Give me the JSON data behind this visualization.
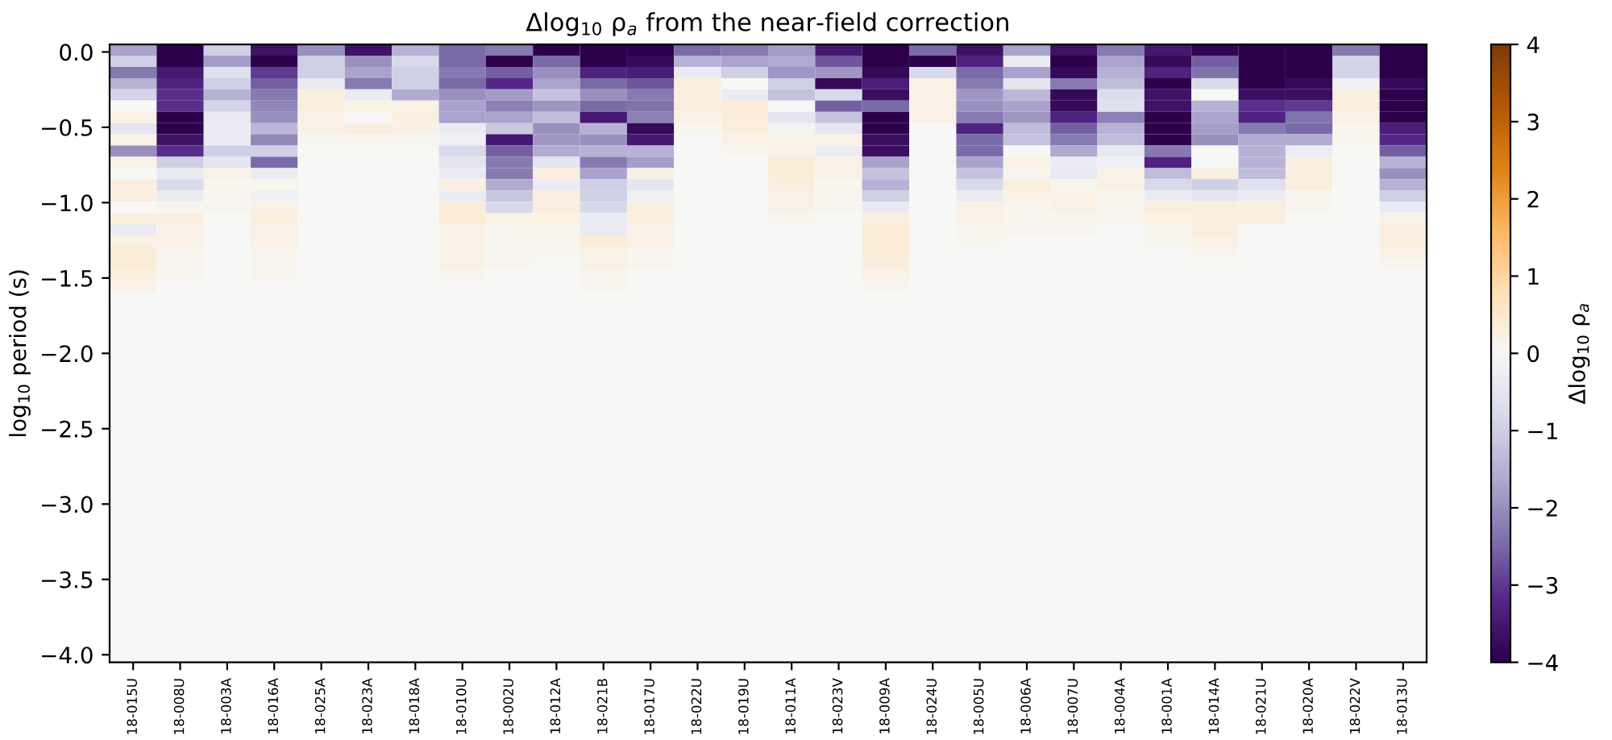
{
  "chart_data": {
    "type": "heatmap",
    "title": "Δlog$_{10}$ ρ$_{a}$ from the near-field correction",
    "ylabel": "log$_{10}$ period (s)",
    "clabel": "Δlog$_{10}$ ρ$_{a}$",
    "categories": [
      "18-015U",
      "18-008U",
      "18-003A",
      "18-016A",
      "18-025A",
      "18-023A",
      "18-018A",
      "18-010U",
      "18-002U",
      "18-012A",
      "18-021B",
      "18-017U",
      "18-022U",
      "18-019U",
      "18-011A",
      "18-023V",
      "18-009A",
      "18-024U",
      "18-005U",
      "18-006A",
      "18-007U",
      "18-004A",
      "18-001A",
      "18-014A",
      "18-021U",
      "18-020A",
      "18-022V",
      "18-013U"
    ],
    "ylim": [
      -4.05,
      0.05
    ],
    "yticks": [
      {
        "value": 0.0,
        "label": "0.0"
      },
      {
        "value": -0.5,
        "label": "−0.5"
      },
      {
        "value": -1.0,
        "label": "−1.0"
      },
      {
        "value": -1.5,
        "label": "−1.5"
      },
      {
        "value": -2.0,
        "label": "−2.0"
      },
      {
        "value": -2.5,
        "label": "−2.5"
      },
      {
        "value": -3.0,
        "label": "−3.0"
      },
      {
        "value": -3.5,
        "label": "−3.5"
      },
      {
        "value": -4.0,
        "label": "−4.0"
      }
    ],
    "clim": [
      -4,
      4
    ],
    "cticks": [
      {
        "value": -4,
        "label": "−4"
      },
      {
        "value": -3,
        "label": "−3"
      },
      {
        "value": -2,
        "label": "−2"
      },
      {
        "value": -1,
        "label": "−1"
      },
      0,
      1,
      2,
      3,
      4
    ],
    "cells": [
      [
        -1.7,
        -4,
        -1,
        -3.6,
        -2,
        -3.6,
        -1.5,
        -2.5,
        -2.3,
        -4,
        -4,
        -4,
        -2.5,
        -2.3,
        -1.8,
        -3.5,
        -4,
        -2.5,
        -3.6,
        -1.7,
        -3.6,
        -2.3,
        -3.5,
        -3.9,
        -4,
        -4,
        -2.3,
        -4
      ],
      [
        -1,
        -4,
        -1.8,
        -4,
        -1,
        -2,
        -0.8,
        -2.5,
        -4,
        -2.5,
        -4,
        -3.8,
        -1.5,
        -1.7,
        -1.6,
        -2.7,
        -4,
        -4,
        -3.3,
        -0.3,
        -4,
        -1.7,
        -3.8,
        -2.6,
        -4,
        -4,
        -0.9,
        -4
      ],
      [
        -2.3,
        -3.5,
        -0.6,
        -3,
        -1,
        -1.7,
        -1,
        -2.3,
        -2.6,
        -2,
        -3.3,
        -3.4,
        -0.3,
        -1,
        -1.9,
        -1.9,
        -3.8,
        -0.8,
        -2.5,
        -1.7,
        -3.8,
        -1.5,
        -3.3,
        -2.4,
        -4,
        -4,
        -0.9,
        -4
      ],
      [
        -1.5,
        -3.3,
        -1,
        -2.6,
        -0.4,
        -2.3,
        -1,
        -2.5,
        -3.2,
        -1.7,
        -2.5,
        -2.7,
        0.3,
        0,
        -1,
        -3.8,
        -3.4,
        0.2,
        -2.3,
        -0.5,
        -2.3,
        -1.3,
        -4,
        -0.8,
        -4,
        -3.8,
        -0.2,
        -3.8
      ],
      [
        -0.9,
        -3.1,
        -1.5,
        -2.3,
        0.3,
        -0.3,
        -1.6,
        -2,
        -1.8,
        -1.2,
        -2,
        -2.3,
        0.3,
        -0.3,
        -1.2,
        -0.8,
        -3.7,
        0.2,
        -1.9,
        -1.4,
        -3.8,
        -0.7,
        -3.6,
        0,
        -3.7,
        -3.7,
        0.3,
        -4
      ],
      [
        0,
        -3.1,
        -0.9,
        -2.1,
        0.3,
        0.2,
        0.2,
        -1.7,
        -2.2,
        -1.9,
        -2.5,
        -2.4,
        0.3,
        0.4,
        0,
        -2.6,
        -2.5,
        0.2,
        -2,
        -1.7,
        -3.8,
        -0.6,
        -3.6,
        -1.5,
        -3.1,
        -3,
        0.3,
        -4
      ],
      [
        0.2,
        -4,
        -0.4,
        -2,
        0.2,
        0,
        0.3,
        -1.7,
        -1.7,
        -1.3,
        -3.5,
        -2.2,
        0.2,
        0.4,
        -0.5,
        -1.2,
        -4,
        0.2,
        -2.3,
        -1.9,
        -3.3,
        -2.2,
        -4,
        -1.7,
        -3.3,
        -2.4,
        0.2,
        -4
      ],
      [
        -0.5,
        -4,
        -0.3,
        -1.4,
        0.2,
        0.3,
        0.2,
        -0.3,
        -1.1,
        -2,
        -1.5,
        -3.8,
        0.1,
        0.3,
        -0.1,
        -0.5,
        -4,
        0,
        -3.3,
        -1.3,
        -2.6,
        -1.5,
        -4,
        -1.8,
        -2.3,
        -2.5,
        0.1,
        -3.4
      ],
      [
        0.2,
        -3.6,
        -0.3,
        -2.1,
        0.1,
        0.1,
        0.1,
        -0.2,
        -3.5,
        -1.9,
        -2,
        -3.5,
        0,
        0.2,
        0.2,
        0.2,
        -3.7,
        0,
        -2.5,
        -1.2,
        -2.3,
        -1.3,
        -4,
        -2,
        -1.6,
        -1.6,
        0.1,
        -3.2
      ],
      [
        -2,
        -3.1,
        -1,
        -1,
        0,
        0,
        0,
        -0.8,
        -2.6,
        -1.6,
        -1.5,
        -1.5,
        0,
        0.1,
        0.2,
        -0.3,
        -3.7,
        0,
        -2.5,
        0,
        -1.6,
        -0.4,
        -2.3,
        0,
        -1.5,
        -0.3,
        0,
        -2.6
      ],
      [
        0.2,
        -1,
        -0.5,
        -2.5,
        0,
        0,
        0,
        -0.5,
        -2.3,
        -0.5,
        -2.3,
        -1.8,
        0,
        0,
        0.4,
        0.2,
        -1.7,
        0,
        -1.7,
        0.2,
        -0.3,
        -0.2,
        -3.3,
        0,
        -1.5,
        0.3,
        0,
        -1.5
      ],
      [
        0,
        -0.4,
        0.2,
        -0.3,
        0,
        0,
        0,
        -0.3,
        -2.3,
        0.3,
        -1.7,
        0.2,
        0,
        0,
        0.4,
        0.2,
        -1.2,
        0,
        -1.2,
        0.1,
        -0.4,
        0.2,
        -1.3,
        0.3,
        -1.3,
        0.3,
        0,
        -2
      ],
      [
        0.3,
        -0.8,
        0.1,
        0.1,
        0,
        0,
        0,
        0.3,
        -1.6,
        -0.3,
        -1,
        -0.5,
        0,
        0,
        0.3,
        0.1,
        -1.5,
        0,
        -0.8,
        0.3,
        0.1,
        0.2,
        -0.8,
        -1,
        -0.6,
        0.3,
        0,
        -1.5
      ],
      [
        0.3,
        -0.3,
        0.1,
        -0.2,
        0,
        0,
        0,
        -0.3,
        -1.1,
        0.3,
        -1,
        -0.2,
        0,
        0,
        0.2,
        0.1,
        -1,
        0,
        -0.3,
        0.2,
        0.2,
        0.1,
        -0.3,
        -0.5,
        -0.3,
        0.1,
        0,
        -1
      ],
      [
        0,
        0.1,
        0.1,
        0.2,
        0,
        0,
        0,
        0.4,
        -0.8,
        0.3,
        -0.8,
        0.3,
        0,
        0,
        0.2,
        0.1,
        -0.4,
        0,
        0.2,
        0.1,
        0.2,
        0.1,
        0.3,
        0.3,
        0.3,
        0.1,
        0,
        -0.4
      ],
      [
        0.3,
        0.3,
        0,
        0.3,
        0,
        0,
        0,
        0.4,
        0.2,
        0.2,
        -0.3,
        0.3,
        0,
        0,
        0.1,
        0,
        0.3,
        0,
        0.2,
        0.1,
        0.1,
        0.1,
        0.2,
        0.3,
        0.3,
        0,
        0,
        0.2
      ],
      [
        -0.3,
        0.2,
        0,
        0.2,
        0,
        0,
        0,
        0.2,
        0.1,
        0.1,
        -0.3,
        0.2,
        0,
        0,
        0,
        0,
        0.4,
        0,
        0.1,
        0.1,
        0.1,
        0,
        0.1,
        0.3,
        0,
        0,
        0,
        0.3
      ],
      [
        0.2,
        0.2,
        0,
        0.2,
        0,
        0,
        0,
        0.2,
        0.1,
        0.1,
        0.4,
        0.2,
        0,
        0,
        0,
        0,
        0.4,
        0,
        0.1,
        0,
        0,
        0,
        0.1,
        0.2,
        0,
        0,
        0,
        0.3
      ],
      [
        0.4,
        0.1,
        0,
        0.1,
        0,
        0,
        0,
        0.2,
        0.1,
        0.1,
        0.2,
        0.1,
        0,
        0,
        0,
        0,
        0.4,
        0,
        0,
        0,
        0,
        0,
        0,
        0.1,
        0,
        0,
        0,
        0.2
      ],
      [
        0.4,
        0.1,
        0,
        0.1,
        0,
        0,
        0,
        0.2,
        0.1,
        0,
        0.2,
        0.1,
        0,
        0,
        0,
        0,
        0.3,
        0,
        0,
        0,
        0,
        0,
        0,
        0,
        0,
        0,
        0,
        0.1
      ],
      [
        0.3,
        0.1,
        0,
        0.1,
        0,
        0,
        0,
        0.1,
        0,
        0,
        0.1,
        0,
        0,
        0,
        0,
        0,
        0.2,
        0,
        0,
        0,
        0,
        0,
        0,
        0,
        0,
        0,
        0,
        0
      ],
      [
        0.2,
        0,
        0,
        0,
        0,
        0,
        0,
        0,
        0,
        0,
        0.1,
        0,
        0,
        0,
        0,
        0,
        0.1,
        0,
        0,
        0,
        0,
        0,
        0,
        0,
        0,
        0,
        0,
        0
      ],
      [
        0,
        0,
        0,
        0,
        0,
        0,
        0,
        0,
        0,
        0,
        0,
        0,
        0,
        0,
        0,
        0,
        0,
        0,
        0,
        0,
        0,
        0,
        0,
        0,
        0,
        0,
        0,
        0
      ],
      [
        0,
        0,
        0,
        0,
        0,
        0,
        0,
        0,
        0,
        0,
        0,
        0,
        0,
        0,
        0,
        0,
        0,
        0,
        0,
        0,
        0,
        0,
        0,
        0,
        0,
        0,
        0,
        0
      ],
      [
        0,
        0,
        0,
        0,
        0,
        0,
        0,
        0,
        0,
        0,
        0,
        0,
        0,
        0,
        0,
        0,
        0,
        0,
        0,
        0,
        0,
        0,
        0,
        0,
        0,
        0,
        0,
        0
      ],
      [
        0,
        0,
        0,
        0,
        0,
        0,
        0,
        0,
        0,
        0,
        0,
        0,
        0,
        0,
        0,
        0,
        0,
        0,
        0,
        0,
        0,
        0,
        0,
        0,
        0,
        0,
        0,
        0
      ],
      [
        0,
        0,
        0,
        0,
        0,
        0,
        0,
        0,
        0,
        0,
        0,
        0,
        0,
        0,
        0,
        0,
        0,
        0,
        0,
        0,
        0,
        0,
        0,
        0,
        0,
        0,
        0,
        0
      ],
      [
        0,
        0,
        0,
        0,
        0,
        0,
        0,
        0,
        0,
        0,
        0,
        0,
        0,
        0,
        0,
        0,
        0,
        0,
        0,
        0,
        0,
        0,
        0,
        0,
        0,
        0,
        0,
        0
      ],
      [
        0,
        0,
        0,
        0,
        0,
        0,
        0,
        0,
        0,
        0,
        0,
        0,
        0,
        0,
        0,
        0,
        0,
        0,
        0,
        0,
        0,
        0,
        0,
        0,
        0,
        0,
        0,
        0
      ],
      [
        0,
        0,
        0,
        0,
        0,
        0,
        0,
        0,
        0,
        0,
        0,
        0,
        0,
        0,
        0,
        0,
        0,
        0,
        0,
        0,
        0,
        0,
        0,
        0,
        0,
        0,
        0,
        0
      ],
      [
        0,
        0,
        0,
        0,
        0,
        0,
        0,
        0,
        0,
        0,
        0,
        0,
        0,
        0,
        0,
        0,
        0,
        0,
        0,
        0,
        0,
        0,
        0,
        0,
        0,
        0,
        0,
        0
      ],
      [
        0,
        0,
        0,
        0,
        0,
        0,
        0,
        0,
        0,
        0,
        0,
        0,
        0,
        0,
        0,
        0,
        0,
        0,
        0,
        0,
        0,
        0,
        0,
        0,
        0,
        0,
        0,
        0
      ],
      [
        0,
        0,
        0,
        0,
        0,
        0,
        0,
        0,
        0,
        0,
        0,
        0,
        0,
        0,
        0,
        0,
        0,
        0,
        0,
        0,
        0,
        0,
        0,
        0,
        0,
        0,
        0,
        0
      ],
      [
        0,
        0,
        0,
        0,
        0,
        0,
        0,
        0,
        0,
        0,
        0,
        0,
        0,
        0,
        0,
        0,
        0,
        0,
        0,
        0,
        0,
        0,
        0,
        0,
        0,
        0,
        0,
        0
      ],
      [
        0,
        0,
        0,
        0,
        0,
        0,
        0,
        0,
        0,
        0,
        0,
        0,
        0,
        0,
        0,
        0,
        0,
        0,
        0,
        0,
        0,
        0,
        0,
        0,
        0,
        0,
        0,
        0
      ],
      [
        0,
        0,
        0,
        0,
        0,
        0,
        0,
        0,
        0,
        0,
        0,
        0,
        0,
        0,
        0,
        0,
        0,
        0,
        0,
        0,
        0,
        0,
        0,
        0,
        0,
        0,
        0,
        0
      ],
      [
        0,
        0,
        0,
        0,
        0,
        0,
        0,
        0,
        0,
        0,
        0,
        0,
        0,
        0,
        0,
        0,
        0,
        0,
        0,
        0,
        0,
        0,
        0,
        0,
        0,
        0,
        0,
        0
      ],
      [
        0,
        0,
        0,
        0,
        0,
        0,
        0,
        0,
        0,
        0,
        0,
        0,
        0,
        0,
        0,
        0,
        0,
        0,
        0,
        0,
        0,
        0,
        0,
        0,
        0,
        0,
        0,
        0
      ],
      [
        0,
        0,
        0,
        0,
        0,
        0,
        0,
        0,
        0,
        0,
        0,
        0,
        0,
        0,
        0,
        0,
        0,
        0,
        0,
        0,
        0,
        0,
        0,
        0,
        0,
        0,
        0,
        0
      ],
      [
        0,
        0,
        0,
        0,
        0,
        0,
        0,
        0,
        0,
        0,
        0,
        0,
        0,
        0,
        0,
        0,
        0,
        0,
        0,
        0,
        0,
        0,
        0,
        0,
        0,
        0,
        0,
        0
      ],
      [
        0,
        0,
        0,
        0,
        0,
        0,
        0,
        0,
        0,
        0,
        0,
        0,
        0,
        0,
        0,
        0,
        0,
        0,
        0,
        0,
        0,
        0,
        0,
        0,
        0,
        0,
        0,
        0
      ],
      [
        0,
        0,
        0,
        0,
        0,
        0,
        0,
        0,
        0,
        0,
        0,
        0,
        0,
        0,
        0,
        0,
        0,
        0,
        0,
        0,
        0,
        0,
        0,
        0,
        0,
        0,
        0,
        0
      ],
      [
        0,
        0,
        0,
        0,
        0,
        0,
        0,
        0,
        0,
        0,
        0,
        0,
        0,
        0,
        0,
        0,
        0,
        0,
        0,
        0,
        0,
        0,
        0,
        0,
        0,
        0,
        0,
        0
      ],
      [
        0,
        0,
        0,
        0,
        0,
        0,
        0,
        0,
        0,
        0,
        0,
        0,
        0,
        0,
        0,
        0,
        0,
        0,
        0,
        0,
        0,
        0,
        0,
        0,
        0,
        0,
        0,
        0
      ],
      [
        0,
        0,
        0,
        0,
        0,
        0,
        0,
        0,
        0,
        0,
        0,
        0,
        0,
        0,
        0,
        0,
        0,
        0,
        0,
        0,
        0,
        0,
        0,
        0,
        0,
        0,
        0,
        0
      ],
      [
        0,
        0,
        0,
        0,
        0,
        0,
        0,
        0,
        0,
        0,
        0,
        0,
        0,
        0,
        0,
        0,
        0,
        0,
        0,
        0,
        0,
        0,
        0,
        0,
        0,
        0,
        0,
        0
      ],
      [
        0,
        0,
        0,
        0,
        0,
        0,
        0,
        0,
        0,
        0,
        0,
        0,
        0,
        0,
        0,
        0,
        0,
        0,
        0,
        0,
        0,
        0,
        0,
        0,
        0,
        0,
        0,
        0
      ],
      [
        0,
        0,
        0,
        0,
        0,
        0,
        0,
        0,
        0,
        0,
        0,
        0,
        0,
        0,
        0,
        0,
        0,
        0,
        0,
        0,
        0,
        0,
        0,
        0,
        0,
        0,
        0,
        0
      ],
      [
        0,
        0,
        0,
        0,
        0,
        0,
        0,
        0,
        0,
        0,
        0,
        0,
        0,
        0,
        0,
        0,
        0,
        0,
        0,
        0,
        0,
        0,
        0,
        0,
        0,
        0,
        0,
        0
      ],
      [
        0,
        0,
        0,
        0,
        0,
        0,
        0,
        0,
        0,
        0,
        0,
        0,
        0,
        0,
        0,
        0,
        0,
        0,
        0,
        0,
        0,
        0,
        0,
        0,
        0,
        0,
        0,
        0
      ],
      [
        0,
        0,
        0,
        0,
        0,
        0,
        0,
        0,
        0,
        0,
        0,
        0,
        0,
        0,
        0,
        0,
        0,
        0,
        0,
        0,
        0,
        0,
        0,
        0,
        0,
        0,
        0,
        0
      ],
      [
        0,
        0,
        0,
        0,
        0,
        0,
        0,
        0,
        0,
        0,
        0,
        0,
        0,
        0,
        0,
        0,
        0,
        0,
        0,
        0,
        0,
        0,
        0,
        0,
        0,
        0,
        0,
        0
      ],
      [
        0,
        0,
        0,
        0,
        0,
        0,
        0,
        0,
        0,
        0,
        0,
        0,
        0,
        0,
        0,
        0,
        0,
        0,
        0,
        0,
        0,
        0,
        0,
        0,
        0,
        0,
        0,
        0
      ],
      [
        0,
        0,
        0,
        0,
        0,
        0,
        0,
        0,
        0,
        0,
        0,
        0,
        0,
        0,
        0,
        0,
        0,
        0,
        0,
        0,
        0,
        0,
        0,
        0,
        0,
        0,
        0,
        0
      ],
      [
        0,
        0,
        0,
        0,
        0,
        0,
        0,
        0,
        0,
        0,
        0,
        0,
        0,
        0,
        0,
        0,
        0,
        0,
        0,
        0,
        0,
        0,
        0,
        0,
        0,
        0,
        0,
        0
      ]
    ]
  }
}
